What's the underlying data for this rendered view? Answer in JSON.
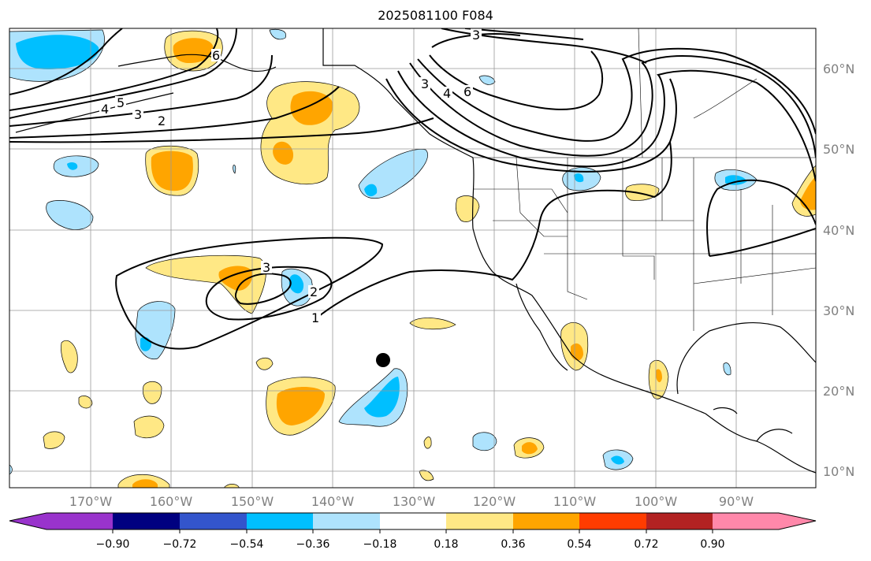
{
  "title": "2025081100 F084",
  "lon_labels": [
    "170°W",
    "160°W",
    "150°W",
    "140°W",
    "130°W",
    "120°W",
    "110°W",
    "100°W",
    "90°W"
  ],
  "lat_labels": [
    "60°N",
    "50°N",
    "40°N",
    "30°N",
    "20°N",
    "10°N"
  ],
  "colorbar": {
    "colors": [
      "#9933cc",
      "#000080",
      "#3355cc",
      "#00bfff",
      "#aee3fd",
      "#ffffff",
      "#ffe885",
      "#ffa500",
      "#ff3c00",
      "#b22222",
      "#ff88aa"
    ],
    "tick_labels": [
      "−0.90",
      "−0.72",
      "−0.54",
      "−0.36",
      "−0.18",
      "0.18",
      "0.36",
      "0.54",
      "0.72",
      "0.90"
    ]
  },
  "contour_labels": [
    "6",
    "5",
    "4",
    "3",
    "2",
    "3",
    "4",
    "6",
    "3",
    "3",
    "2",
    "1"
  ],
  "colors": {
    "positive_low": "#ffe885",
    "positive_mid": "#ffa500",
    "negative_low": "#aee3fd",
    "negative_mid": "#00bfff",
    "grid": "#999999"
  }
}
